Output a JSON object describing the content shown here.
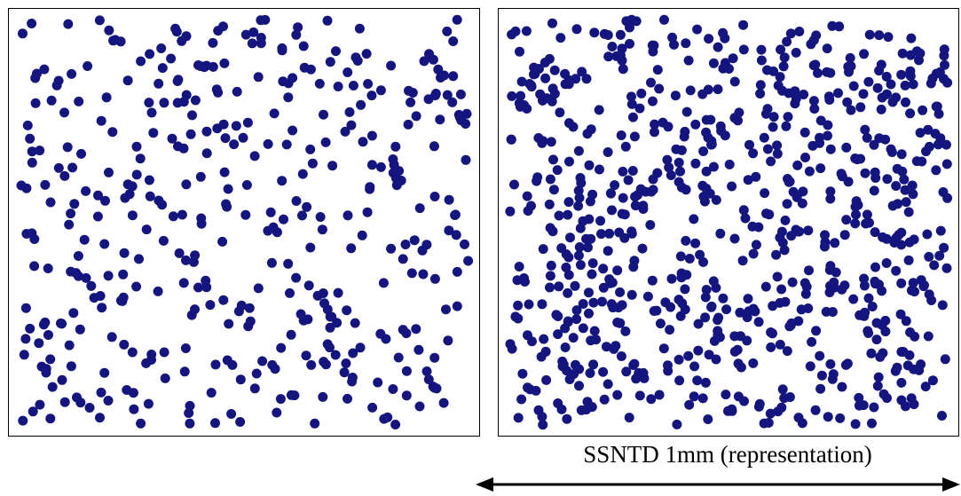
{
  "caption": "SSNTD 1mm (representation)",
  "colors": {
    "dot": "#15157f",
    "frame": "#000000",
    "background": "#ffffff"
  },
  "panels": [
    {
      "id": "left",
      "track_count": 420,
      "seed": 7
    },
    {
      "id": "right",
      "track_count": 760,
      "seed": 113
    }
  ],
  "scale_bar": {
    "style": "double-headed arrow"
  }
}
